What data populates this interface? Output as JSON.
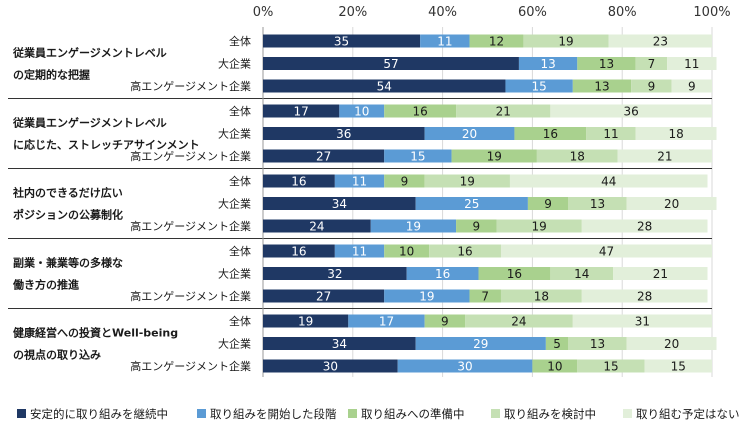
{
  "chart_data": {
    "type": "bar",
    "orientation": "horizontal",
    "stacked": true,
    "axis": {
      "min": 0,
      "max": 100,
      "ticks": [
        "0%",
        "20%",
        "40%",
        "60%",
        "80%",
        "100%"
      ],
      "tick_values": [
        0,
        20,
        40,
        60,
        80,
        100
      ],
      "grid": true
    },
    "series": [
      {
        "name": "安定的に取り組みを継続中",
        "color": "#1f3864"
      },
      {
        "name": "取り組みを開始した段階",
        "color": "#5b9bd5"
      },
      {
        "name": "取り組みへの準備中",
        "color": "#a9d18e"
      },
      {
        "name": "取り組みを検討中",
        "color": "#c5e0b4"
      },
      {
        "name": "取り組む予定はない",
        "color": "#e2efda"
      }
    ],
    "groups": [
      {
        "label_lines": [
          "従業員エンゲージメントレベル",
          "の定期的な把握"
        ],
        "rows": [
          {
            "label": "全体",
            "values": [
              35,
              11,
              12,
              19,
              23
            ]
          },
          {
            "label": "大企業",
            "values": [
              57,
              13,
              13,
              7,
              11
            ]
          },
          {
            "label": "高エンゲージメント企業",
            "values": [
              54,
              15,
              13,
              9,
              9
            ]
          }
        ]
      },
      {
        "label_lines": [
          "従業員エンゲージメントレベル",
          "に応じた、ストレッチアサインメント"
        ],
        "rows": [
          {
            "label": "全体",
            "values": [
              17,
              10,
              16,
              21,
              36
            ]
          },
          {
            "label": "大企業",
            "values": [
              36,
              20,
              16,
              11,
              18
            ]
          },
          {
            "label": "高エンゲージメント企業",
            "values": [
              27,
              15,
              19,
              18,
              21
            ]
          }
        ]
      },
      {
        "label_lines": [
          "社内のできるだけ広い",
          "ポジションの公募制化"
        ],
        "rows": [
          {
            "label": "全体",
            "values": [
              16,
              11,
              9,
              19,
              44
            ]
          },
          {
            "label": "大企業",
            "values": [
              34,
              25,
              9,
              13,
              20
            ]
          },
          {
            "label": "高エンゲージメント企業",
            "values": [
              24,
              19,
              9,
              19,
              28
            ]
          }
        ]
      },
      {
        "label_lines": [
          "副業・兼業等の多様な",
          "働き方の推進"
        ],
        "rows": [
          {
            "label": "全体",
            "values": [
              16,
              11,
              10,
              16,
              47
            ]
          },
          {
            "label": "大企業",
            "values": [
              32,
              16,
              16,
              14,
              21
            ]
          },
          {
            "label": "高エンゲージメント企業",
            "values": [
              27,
              19,
              7,
              18,
              28
            ]
          }
        ]
      },
      {
        "label_lines": [
          "健康経営への投資とWell-being",
          "の視点の取り込み"
        ],
        "rows": [
          {
            "label": "全体",
            "values": [
              19,
              17,
              9,
              24,
              31
            ]
          },
          {
            "label": "大企業",
            "values": [
              34,
              29,
              5,
              13,
              20
            ]
          },
          {
            "label": "高エンゲージメント企業",
            "values": [
              30,
              30,
              10,
              15,
              15
            ]
          }
        ]
      }
    ]
  }
}
